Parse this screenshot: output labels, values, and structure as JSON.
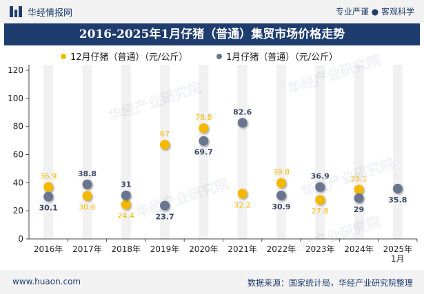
{
  "header": {
    "brand": "华经情报网",
    "tagline": "专业严谨 ● 客观科学"
  },
  "title": "2016-2025年1月仔猪（普通）集贸市场价格走势",
  "footer": {
    "url": "www.huaon.com",
    "source": "数据来源：国家统计局，华经产业研究院整理"
  },
  "watermark": "华经产业研究院",
  "colors": {
    "series1": "#f5b800",
    "series2": "#6a768f",
    "bar": "#f1f1f1",
    "navy": "#1f3c6e"
  },
  "chart_data": {
    "type": "scatter",
    "categories": [
      "2016年",
      "2017年",
      "2018年",
      "2019年",
      "2020年",
      "2021年",
      "2022年",
      "2023年",
      "2024年",
      "2025年\n1月"
    ],
    "ylim": [
      0,
      120
    ],
    "yticks": [
      0,
      20,
      40,
      60,
      80,
      100,
      120
    ],
    "legend_position": "top",
    "series": [
      {
        "name": "12月仔猪（普通）（元/公斤）",
        "color": "#f5b800",
        "values": [
          36.9,
          30.6,
          24.4,
          67,
          78.8,
          32.2,
          39.8,
          27.8,
          35.1,
          null
        ]
      },
      {
        "name": "1月仔猪（普通）（元/公斤）",
        "color": "#6a768f",
        "values": [
          30.1,
          38.8,
          31,
          23.7,
          69.7,
          82.6,
          30.9,
          36.9,
          29,
          35.8
        ]
      }
    ]
  }
}
